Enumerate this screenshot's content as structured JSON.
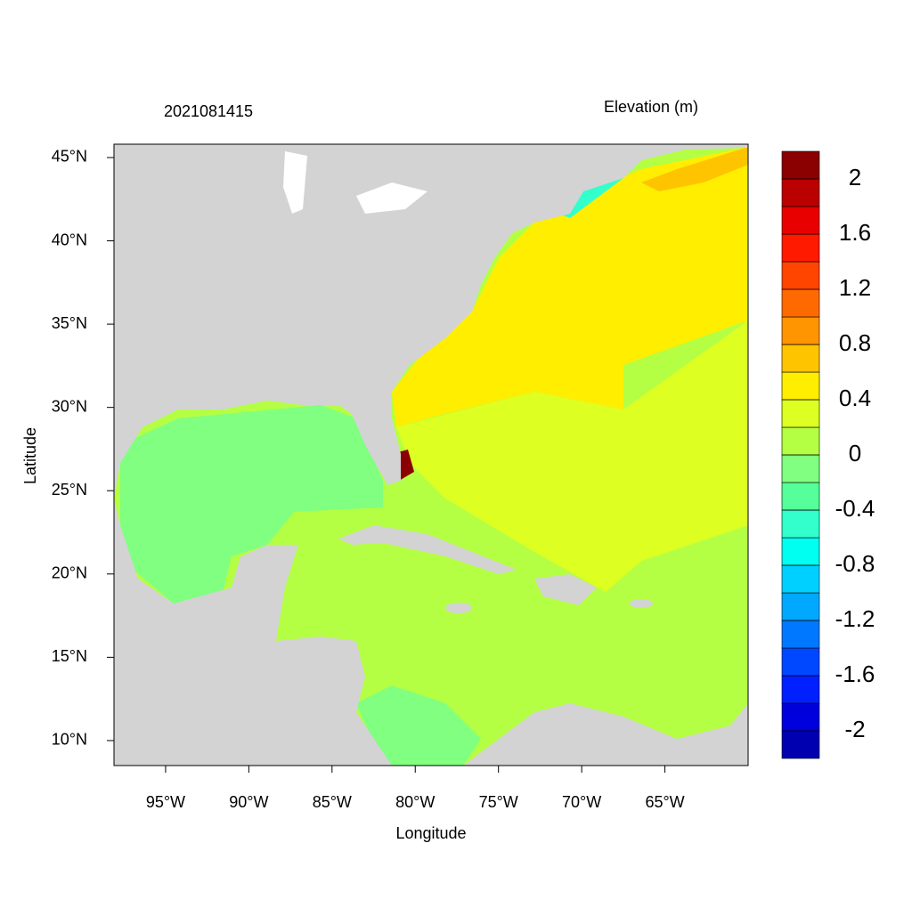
{
  "chart_data": {
    "type": "map",
    "title": "2021081415",
    "subtitle": "Elevation (m)",
    "x_label": "Longitude",
    "y_label": "Latitude",
    "xlim": [
      -98.1,
      -60
    ],
    "ylim": [
      8.5,
      45.8
    ],
    "xticks": [
      {
        "value": -95,
        "label": "95°W"
      },
      {
        "value": -90,
        "label": "90°W"
      },
      {
        "value": -85,
        "label": "85°W"
      },
      {
        "value": -80,
        "label": "80°W"
      },
      {
        "value": -75,
        "label": "75°W"
      },
      {
        "value": -70,
        "label": "70°W"
      },
      {
        "value": -65,
        "label": "65°W"
      }
    ],
    "yticks": [
      {
        "value": 10,
        "label": "10°N"
      },
      {
        "value": 15,
        "label": "15°N"
      },
      {
        "value": 20,
        "label": "20°N"
      },
      {
        "value": 25,
        "label": "25°N"
      },
      {
        "value": 30,
        "label": "30°N"
      },
      {
        "value": 35,
        "label": "35°N"
      },
      {
        "value": 40,
        "label": "40°N"
      },
      {
        "value": 45,
        "label": "45°N"
      }
    ],
    "colorbar": {
      "lim": [
        -2.2,
        2.2
      ],
      "ticks": [
        -2,
        -1.6,
        -1.2,
        -0.8,
        -0.4,
        0,
        0.4,
        0.8,
        1.2,
        1.6,
        2
      ],
      "colors": [
        "#0000b0",
        "#0000dd",
        "#0020ff",
        "#0048ff",
        "#0078ff",
        "#00a8ff",
        "#00d0ff",
        "#00fff0",
        "#33ffcc",
        "#55ff99",
        "#80ff80",
        "#b4ff44",
        "#ddff22",
        "#ffee00",
        "#ffc400",
        "#ff9500",
        "#ff6a00",
        "#ff4500",
        "#ff1a00",
        "#e80000",
        "#bb0000",
        "#8b0000"
      ]
    }
  }
}
